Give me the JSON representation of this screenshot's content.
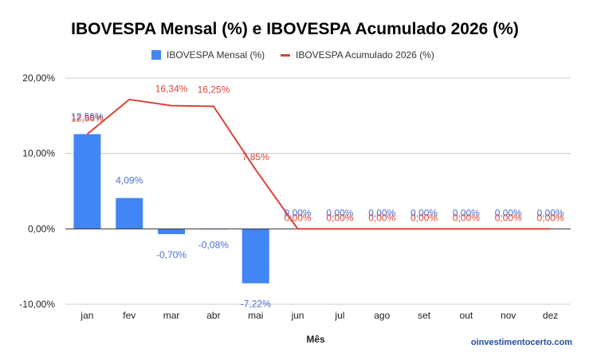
{
  "chart_data": {
    "type": "bar",
    "title": "IBOVESPA Mensal (%) e IBOVESPA Acumulado 2026 (%)",
    "xlabel": "Mês",
    "ylabel": "",
    "categories": [
      "jan",
      "fev",
      "mar",
      "abr",
      "mai",
      "jun",
      "jul",
      "ago",
      "set",
      "out",
      "nov",
      "dez"
    ],
    "ylim": [
      -10,
      20
    ],
    "yticks": [
      "20,00%",
      "10,00%",
      "0,00%",
      "-10,00%"
    ],
    "grid": true,
    "legend_position": "top",
    "series": [
      {
        "name": "IBOVESPA Mensal (%)",
        "type": "bar",
        "color": "#4285f4",
        "values": [
          12.56,
          4.09,
          -0.7,
          -0.08,
          -7.22,
          0,
          0,
          0,
          0,
          0,
          0,
          0
        ],
        "labels": [
          "12,56%",
          "4,09%",
          "-0,70%",
          "-0,08%",
          "-7,22%",
          "0,00%",
          "0,00%",
          "0,00%",
          "0,00%",
          "0,00%",
          "0,00%",
          "0,00%"
        ]
      },
      {
        "name": "IBOVESPA Acumulado 2026 (%)",
        "type": "line",
        "color": "#db4437",
        "values": [
          12.56,
          17.16,
          16.34,
          16.25,
          7.85,
          0,
          0,
          0,
          0,
          0,
          0,
          0
        ],
        "labels": [
          "12,56%",
          "",
          "16,34%",
          "16,25%",
          "7,85%",
          "0,00%",
          "0,00%",
          "0,00%",
          "0,00%",
          "0,00%",
          "0,00%",
          "0,00%"
        ]
      }
    ]
  },
  "watermark": "oinvestimentocerto.com"
}
